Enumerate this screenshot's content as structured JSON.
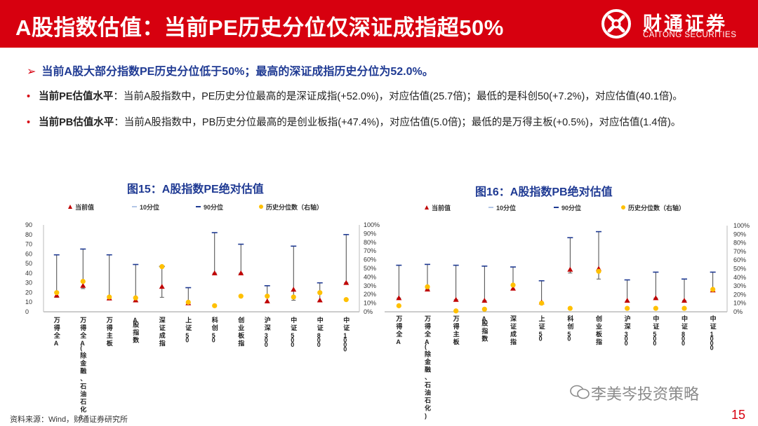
{
  "header": {
    "title": "A股指数估值：当前PE历史分位仅深证成指超50%",
    "logo_cn": "财通证券",
    "logo_en": "CAITONG SECURITIES"
  },
  "bullets": {
    "main": "当前A股大部分指数PE历史分位低于50%；最高的深证成指历史分位为52.0%。",
    "pe_lead": "当前PE估值水平",
    "pe_text": "：当前A股指数中，PE历史分位最高的是深证成指(+52.0%)，对应估值(25.7倍)；最低的是科创50(+7.2%)，对应估值(40.1倍)。",
    "pb_lead": "当前PB估值水平",
    "pb_text": "：当前A股指数中，PB历史分位最高的是创业板指(+47.4%)，对应估值(5.0倍)；最低的是万得主板(+0.5%)，对应估值(1.4倍)。"
  },
  "colors": {
    "accent": "#d7000f",
    "navy": "#1f3a93",
    "current": "#c00000",
    "pct": "#ffc000"
  },
  "legend": {
    "current": "当前值",
    "p10": "10分位",
    "p90": "90分位",
    "pct": "历史分位数（右轴）"
  },
  "chart_data": [
    {
      "type": "scatter",
      "title": "图15：A股指数PE绝对估值",
      "categories": [
        "万得全A",
        "万得全A(除金融、石油石化)",
        "万得主板",
        "A股指数",
        "深证成指",
        "上证50",
        "科创50",
        "创业板指",
        "沪深300",
        "中证500",
        "中证800",
        "中证1000"
      ],
      "ylim": [
        0,
        90
      ],
      "yticks": [
        0,
        10,
        20,
        30,
        40,
        50,
        60,
        70,
        80,
        90
      ],
      "y2lim": [
        0,
        100
      ],
      "y2ticks": [
        "0%",
        "10%",
        "20%",
        "30%",
        "40%",
        "50%",
        "60%",
        "70%",
        "80%",
        "90%",
        "100%"
      ],
      "series": [
        {
          "name": "当前值",
          "values": [
            17,
            27,
            14,
            12,
            26,
            9,
            40,
            40,
            11,
            23,
            12,
            30
          ]
        },
        {
          "name": "10分位",
          "values": [
            15,
            24,
            13,
            11,
            15,
            8,
            40,
            40,
            10,
            12,
            11,
            30
          ]
        },
        {
          "name": "90分位",
          "values": [
            59,
            65,
            59,
            49,
            47,
            25,
            82,
            70,
            27,
            68,
            30,
            80
          ]
        },
        {
          "name": "历史分位数（右轴）",
          "axis": "right",
          "values": [
            22,
            35,
            17,
            16,
            52,
            11,
            7,
            18,
            18,
            17,
            22,
            14
          ]
        }
      ]
    },
    {
      "type": "scatter",
      "title": "图16：A股指数PB绝对估值",
      "categories": [
        "万得全A",
        "万得全A(除金融、石油石化)",
        "万得主板",
        "A股指数",
        "深证成指",
        "上证50",
        "科创50",
        "创业板指",
        "沪深300",
        "中证500",
        "中证800",
        "中证1000"
      ],
      "ylim": [
        0,
        10
      ],
      "yticks": [],
      "y2lim": [
        0,
        100
      ],
      "y2ticks": [
        "0%",
        "10%",
        "20%",
        "30%",
        "40%",
        "50%",
        "60%",
        "70%",
        "80%",
        "90%",
        "100%"
      ],
      "series": [
        {
          "name": "当前值",
          "values": [
            1.6,
            2.6,
            1.4,
            1.3,
            2.7,
            1.1,
            4.9,
            5.0,
            1.3,
            1.6,
            1.3,
            2.5
          ]
        },
        {
          "name": "10分位",
          "values": [
            1.6,
            2.6,
            1.4,
            1.3,
            2.6,
            1.0,
            4.5,
            3.8,
            1.2,
            1.6,
            1.3,
            2.5
          ]
        },
        {
          "name": "90分位",
          "values": [
            5.4,
            5.5,
            5.4,
            5.3,
            5.2,
            3.6,
            8.6,
            9.3,
            3.7,
            4.6,
            3.8,
            4.6
          ]
        },
        {
          "name": "历史分位数（右轴）",
          "axis": "right",
          "values": [
            7,
            29,
            1,
            3,
            31,
            10,
            4,
            47,
            4,
            4,
            4,
            26
          ]
        }
      ]
    }
  ],
  "footer": {
    "source": "资料来源：Wind，财通证券研究所",
    "watermark": "李美岑投资策略",
    "page": "15"
  }
}
